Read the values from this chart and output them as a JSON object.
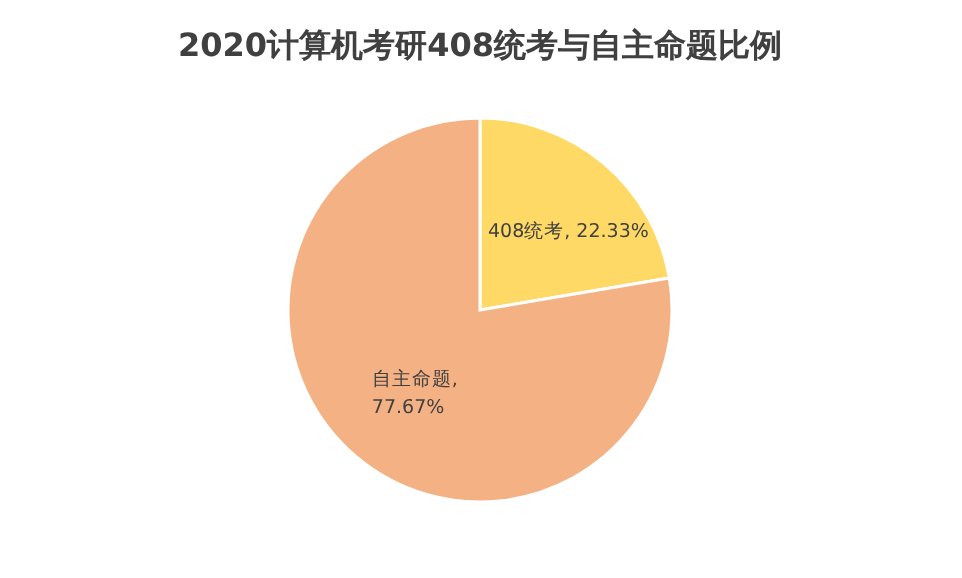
{
  "chart_data": {
    "type": "pie",
    "title": "2020计算机考研408统考与自主命题比例",
    "categories": [
      "408统考",
      "自主命题"
    ],
    "values": [
      22.33,
      77.67
    ],
    "colors": [
      "#ffd966",
      "#f4b183"
    ],
    "value_labels": [
      ", 22.33%",
      ", 77.67%"
    ]
  }
}
